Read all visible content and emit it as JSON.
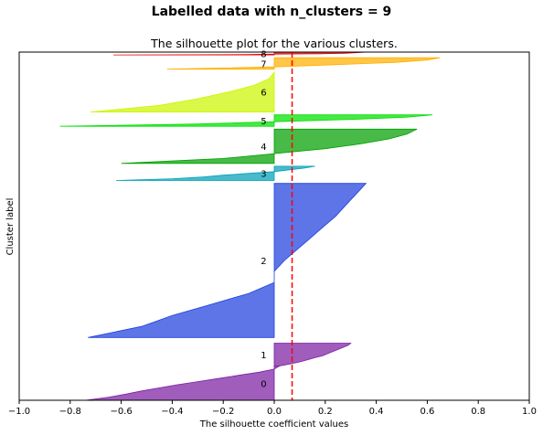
{
  "suptitle": "Labelled data with n_clusters = 9",
  "chart_data": {
    "type": "area",
    "title": "The silhouette plot for the various clusters.",
    "xlabel": "The silhouette coefficient values",
    "ylabel": "Cluster label",
    "xlim": [
      -1.0,
      1.0
    ],
    "xticks": [
      "−1.0",
      "−0.8",
      "−0.6",
      "−0.4",
      "−0.2",
      "0.0",
      "0.2",
      "0.4",
      "0.6",
      "0.8",
      "1.0"
    ],
    "ylim": [
      0,
      610
    ],
    "grid": false,
    "reference_line": {
      "x": 0.07,
      "color": "#ff0000",
      "style": "dashed"
    },
    "clusters": [
      {
        "label": "0",
        "color": "#7b1fa2",
        "y_start": 0,
        "y_end": 60,
        "x": [
          -0.74,
          -0.65,
          -0.58,
          -0.52,
          -0.45,
          -0.38,
          -0.3,
          -0.22,
          -0.14,
          -0.06,
          0.0,
          0.02
        ]
      },
      {
        "label": "1",
        "color": "#7b1fa2",
        "y_start": 60,
        "y_end": 100,
        "x": [
          0.02,
          0.06,
          0.1,
          0.13,
          0.16,
          0.19,
          0.21,
          0.23,
          0.25,
          0.27,
          0.29,
          0.3
        ]
      },
      {
        "label": "2",
        "color": "#1e40dc",
        "y_start": 110,
        "y_end": 380,
        "x": [
          -0.73,
          -0.52,
          -0.4,
          -0.25,
          -0.1,
          0.0,
          0.0,
          0.04,
          0.09,
          0.14,
          0.19,
          0.24,
          0.28,
          0.32,
          0.36
        ]
      },
      {
        "label": "3",
        "color": "#00a0b8",
        "y_start": 385,
        "y_end": 410,
        "x": [
          -0.62,
          -0.4,
          -0.28,
          -0.2,
          -0.1,
          0.0,
          0.06,
          0.12,
          0.16
        ]
      },
      {
        "label": "4",
        "color": "#00a000",
        "y_start": 415,
        "y_end": 475,
        "x": [
          -0.6,
          -0.2,
          0.0,
          0.2,
          0.34,
          0.45,
          0.52,
          0.56
        ]
      },
      {
        "label": "5",
        "color": "#00e000",
        "y_start": 480,
        "y_end": 500,
        "x": [
          -0.84,
          -0.3,
          0.0,
          0.3,
          0.52,
          0.62
        ]
      },
      {
        "label": "6",
        "color": "#ccf500",
        "y_start": 505,
        "y_end": 575,
        "x": [
          -0.72,
          -0.45,
          -0.3,
          -0.18,
          -0.08,
          -0.02,
          0.0
        ]
      },
      {
        "label": "7",
        "color": "#ffb000",
        "y_start": 580,
        "y_end": 600,
        "x": [
          -0.42,
          0.0,
          0.25,
          0.48,
          0.6,
          0.65
        ]
      },
      {
        "label": "8",
        "color": "#e60000",
        "y_start": 605,
        "y_end": 610,
        "x": [
          -0.63,
          -0.1,
          0.0,
          0.18,
          0.27,
          0.31,
          0.34,
          0.36
        ]
      }
    ]
  }
}
